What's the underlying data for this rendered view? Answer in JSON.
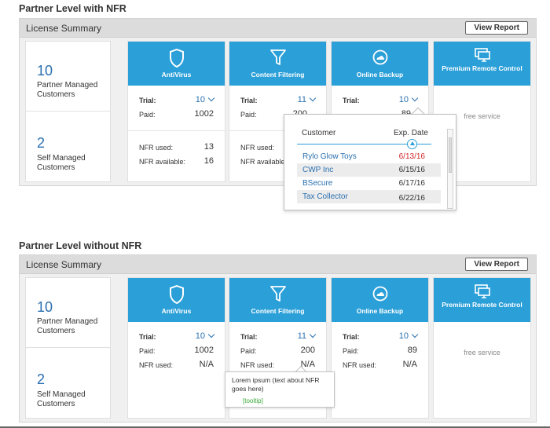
{
  "colors": {
    "service_header": "#2b9fd8",
    "link_blue": "#2a6fb0",
    "expired_red": "#d0262b",
    "tooltip_green": "#3aa83a"
  },
  "sections": [
    {
      "title": "Partner Level with NFR",
      "panel_title": "License Summary",
      "button_label": "View Report",
      "partner_count": "10",
      "partner_label": "Partner Managed Customers",
      "self_count": "2",
      "self_label": "Self Managed Customers",
      "services": [
        {
          "name": "AntiVirus",
          "icon": "shield-icon",
          "trial_label": "Trial:",
          "trial": "10",
          "paid_label": "Paid:",
          "paid": "1002",
          "nfr_used_label": "NFR used:",
          "nfr_used": "13",
          "nfr_available_label": "NFR available:",
          "nfr_available": "16"
        },
        {
          "name": "Content Filtering",
          "icon": "filter-icon",
          "trial_label": "Trial:",
          "trial": "11",
          "paid_label": "Paid:",
          "paid": "200",
          "nfr_used_label": "NFR used:",
          "nfr_available_label": "NFR available"
        },
        {
          "name": "Online Backup",
          "icon": "cloud-backup-icon",
          "trial_label": "Trial:",
          "trial": "10",
          "paid": "89"
        },
        {
          "name": "Premium Remote Control",
          "icon": "monitor-icon",
          "free_label": "free service"
        }
      ],
      "popup": {
        "customer_header": "Customer",
        "date_header": "Exp. Date",
        "rows": [
          {
            "customer": "Rylo Glow Toys",
            "date": "6/13/16"
          },
          {
            "customer": "CWP Inc",
            "date": "6/15/16"
          },
          {
            "customer": "BSecure",
            "date": "6/17/16"
          },
          {
            "customer": "Tax Collector",
            "date": "6/22/16"
          }
        ]
      }
    },
    {
      "title": "Partner Level without NFR",
      "panel_title": "License Summary",
      "button_label": "View Report",
      "partner_count": "10",
      "partner_label": "Partner Managed Customers",
      "self_count": "2",
      "self_label": "Self Managed Customers",
      "services": [
        {
          "name": "AntiVirus",
          "icon": "shield-icon",
          "trial_label": "Trial:",
          "trial": "10",
          "paid_label": "Paid:",
          "paid": "1002",
          "nfr_used_label": "NFR used:",
          "nfr_used": "N/A"
        },
        {
          "name": "Content Filtering",
          "icon": "filter-icon",
          "trial_label": "Trial:",
          "trial": "11",
          "paid_label": "Paid:",
          "paid": "200",
          "nfr_used_label": "NFR used:",
          "nfr_used": "N/A"
        },
        {
          "name": "Online Backup",
          "icon": "cloud-backup-icon",
          "trial_label": "Trial:",
          "trial": "10",
          "paid_label": "Paid:",
          "paid": "89",
          "nfr_used_label": "NFR used:",
          "nfr_used": "N/A"
        },
        {
          "name": "Premium Remote Control",
          "icon": "monitor-icon",
          "free_label": "free service"
        }
      ],
      "tooltip": {
        "text": "Lorem ipsum (text about NFR goes here)",
        "tag": "[tooltip]"
      }
    }
  ]
}
